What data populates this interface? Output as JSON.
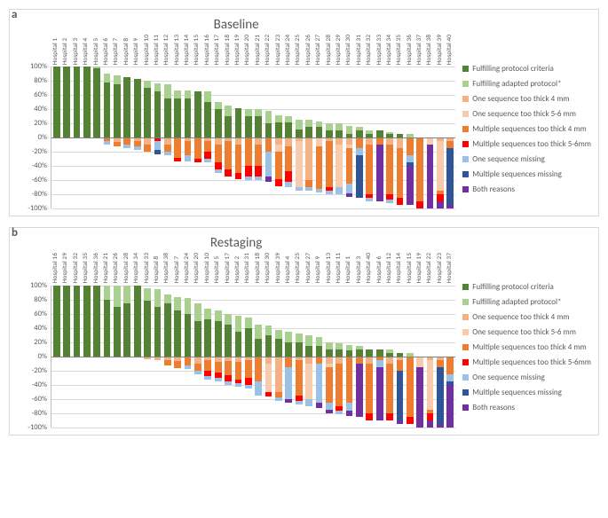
{
  "colors": {
    "fulfilling": "#548235",
    "adapted": "#a9d08e",
    "one4": "#f4b183",
    "one56": "#f8cbad",
    "multi4": "#ed7d31",
    "multi56": "#ff0000",
    "oneMiss": "#9bc2e6",
    "multiMiss": "#2f5597",
    "both": "#7030a0",
    "grid": "#d9d9d9",
    "zero": "#808080",
    "text": "#595959",
    "border": "#d9d9d9"
  },
  "yaxis": {
    "min": -100,
    "max": 100,
    "step": 20,
    "ticks": [
      "100%",
      "80%",
      "60%",
      "40%",
      "20%",
      "0%",
      "-20%",
      "-40%",
      "-60%",
      "-80%",
      "-100%"
    ]
  },
  "legend": [
    {
      "key": "fulfilling",
      "label": "Fulfilling protocol criteria"
    },
    {
      "key": "adapted",
      "label": "Fulfilling adapted protocol*"
    },
    {
      "key": "one4",
      "label": "One sequence too thick 4 mm"
    },
    {
      "key": "one56",
      "label": "One sequence too thick 5-6 mm"
    },
    {
      "key": "multi4",
      "label": "Multiple sequences too thick 4 mm"
    },
    {
      "key": "multi56",
      "label": "Multiple sequences too thick 5-6mm"
    },
    {
      "key": "oneMiss",
      "label": "One sequence missing"
    },
    {
      "key": "multiMiss",
      "label": "Multiple sequences missing"
    },
    {
      "key": "both",
      "label": "Both reasons"
    }
  ],
  "panels": [
    {
      "id": "a",
      "letter": "a",
      "title": "Baseline",
      "categories": [
        "Hospital 1",
        "Hospital 2",
        "Hospital 3",
        "Hospital 4",
        "Hospital 5",
        "Hospital 6",
        "Hospital 7",
        "Hospital 8",
        "Hospital 9",
        "Hospital 10",
        "Hospital 11",
        "Hospital 12",
        "Hospital 13",
        "Hospital 14",
        "Hospital 15",
        "Hospital 16",
        "Hospital 17",
        "Hospital 18",
        "Hospital 19",
        "Hospital 20",
        "Hospital 21",
        "Hospital 22",
        "Hospital 23",
        "Hospital 24",
        "Hospital 25",
        "Hospital 26",
        "Hospital 27",
        "Hospital 28",
        "Hospital 29",
        "Hospital 30",
        "Hospital 31",
        "Hospital 32",
        "Hospital 33",
        "Hospital 34",
        "Hospital 35",
        "Hospital 36",
        "Hospital 37",
        "Hospital 38",
        "Hospital 39",
        "Hospital 40"
      ],
      "bars": [
        {
          "pos": {
            "fulfilling": 100
          },
          "neg": {}
        },
        {
          "pos": {
            "fulfilling": 100
          },
          "neg": {}
        },
        {
          "pos": {
            "fulfilling": 100
          },
          "neg": {}
        },
        {
          "pos": {
            "fulfilling": 100
          },
          "neg": {}
        },
        {
          "pos": {
            "fulfilling": 98,
            "adapted": 2
          },
          "neg": {}
        },
        {
          "pos": {
            "fulfilling": 78,
            "adapted": 12
          },
          "neg": {
            "multi4": 5,
            "oneMiss": 5
          }
        },
        {
          "pos": {
            "fulfilling": 75,
            "adapted": 13
          },
          "neg": {
            "one4": 6,
            "multi4": 6
          }
        },
        {
          "pos": {
            "fulfilling": 85
          },
          "neg": {
            "multi4": 10,
            "oneMiss": 5
          }
        },
        {
          "pos": {
            "fulfilling": 83
          },
          "neg": {
            "one4": 5,
            "multi4": 7,
            "oneMiss": 5
          }
        },
        {
          "pos": {
            "fulfilling": 70,
            "adapted": 10
          },
          "neg": {
            "one4": 10,
            "multi4": 10
          }
        },
        {
          "pos": {
            "fulfilling": 65,
            "adapted": 12
          },
          "neg": {
            "multi56": 5,
            "oneMiss": 12,
            "multiMiss": 6
          }
        },
        {
          "pos": {
            "fulfilling": 55,
            "adapted": 20
          },
          "neg": {
            "one4": 10,
            "multi4": 10,
            "oneMiss": 5
          }
        },
        {
          "pos": {
            "fulfilling": 55,
            "adapted": 12
          },
          "neg": {
            "multi4": 28,
            "multi56": 5
          }
        },
        {
          "pos": {
            "fulfilling": 55,
            "adapted": 12
          },
          "neg": {
            "one4": 5,
            "multi4": 20,
            "oneMiss": 8
          }
        },
        {
          "pos": {
            "fulfilling": 65
          },
          "neg": {
            "multi4": 30,
            "multi56": 5
          }
        },
        {
          "pos": {
            "fulfilling": 50,
            "adapted": 15
          },
          "neg": {
            "one4": 5,
            "multi4": 15,
            "multi56": 10,
            "oneMiss": 5
          }
        },
        {
          "pos": {
            "fulfilling": 40,
            "adapted": 10
          },
          "neg": {
            "one4": 10,
            "multi4": 25,
            "multi56": 10,
            "oneMiss": 5
          }
        },
        {
          "pos": {
            "fulfilling": 30,
            "adapted": 15
          },
          "neg": {
            "one4": 5,
            "multi4": 40,
            "multi56": 10
          }
        },
        {
          "pos": {
            "fulfilling": 42
          },
          "neg": {
            "one4": 10,
            "multi4": 40,
            "multi56": 8
          }
        },
        {
          "pos": {
            "fulfilling": 30,
            "adapted": 10
          },
          "neg": {
            "multi4": 40,
            "multi56": 15,
            "oneMiss": 5
          }
        },
        {
          "pos": {
            "fulfilling": 30,
            "adapted": 10
          },
          "neg": {
            "one4": 10,
            "multi4": 30,
            "multi56": 15,
            "oneMiss": 5
          }
        },
        {
          "pos": {
            "fulfilling": 20,
            "adapted": 18
          },
          "neg": {
            "multi4": 20,
            "oneMiss": 35,
            "both": 7
          }
        },
        {
          "pos": {
            "fulfilling": 22,
            "adapted": 10
          },
          "neg": {
            "one4": 10,
            "one56": 10,
            "multi4": 38,
            "multi56": 10
          }
        },
        {
          "pos": {
            "fulfilling": 22,
            "adapted": 8
          },
          "neg": {
            "one4": 12,
            "multi4": 35,
            "multi56": 15,
            "oneMiss": 8
          }
        },
        {
          "pos": {
            "fulfilling": 12,
            "adapted": 13
          },
          "neg": {
            "one4": 5,
            "one56": 65,
            "oneMiss": 5
          }
        },
        {
          "pos": {
            "fulfilling": 15,
            "adapted": 10
          },
          "neg": {
            "one4": 60,
            "multi4": 10,
            "oneMiss": 5
          }
        },
        {
          "pos": {
            "fulfilling": 15,
            "adapted": 8
          },
          "neg": {
            "one56": 12,
            "multi4": 60,
            "oneMiss": 5
          }
        },
        {
          "pos": {
            "fulfilling": 10,
            "adapted": 10
          },
          "neg": {
            "one4": 5,
            "multi4": 65,
            "multi56": 5,
            "oneMiss": 5
          }
        },
        {
          "pos": {
            "fulfilling": 10,
            "adapted": 10
          },
          "neg": {
            "one4": 10,
            "one56": 60,
            "oneMiss": 10
          }
        },
        {
          "pos": {
            "fulfilling": 5,
            "adapted": 12
          },
          "neg": {
            "one4": 10,
            "one56": 5,
            "multi4": 50,
            "oneMiss": 13,
            "both": 5
          }
        },
        {
          "pos": {
            "fulfilling": 10,
            "adapted": 5
          },
          "neg": {
            "multi4": 15,
            "oneMiss": 10,
            "multiMiss": 60
          }
        },
        {
          "pos": {
            "fulfilling": 5,
            "adapted": 5
          },
          "neg": {
            "one4": 10,
            "multi4": 70,
            "multi56": 5,
            "oneMiss": 5
          }
        },
        {
          "pos": {
            "fulfilling": 10
          },
          "neg": {
            "multi4": 10,
            "both": 80
          }
        },
        {
          "pos": {
            "fulfilling": 5,
            "adapted": 3
          },
          "neg": {
            "one4": 10,
            "multi4": 70,
            "multi56": 7,
            "oneMiss": 5
          }
        },
        {
          "pos": {
            "fulfilling": 5
          },
          "neg": {
            "one4": 15,
            "multi4": 70,
            "multi56": 10
          }
        },
        {
          "pos": {
            "adapted": 5
          },
          "neg": {
            "multi4": 25,
            "oneMiss": 10,
            "multiMiss": 5,
            "both": 55
          }
        },
        {
          "pos": {},
          "neg": {
            "multi4": 90,
            "multi56": 10
          }
        },
        {
          "pos": {},
          "neg": {
            "one56": 10,
            "both": 90
          }
        },
        {
          "pos": {},
          "neg": {
            "one4": 5,
            "one56": 70,
            "multi4": 5,
            "multi56": 10,
            "both": 10
          }
        },
        {
          "pos": {},
          "neg": {
            "one4": 5,
            "multi4": 10,
            "multiMiss": 80,
            "both": 5
          }
        }
      ]
    },
    {
      "id": "b",
      "letter": "b",
      "title": "Restaging",
      "categories": [
        "Hospital 16",
        "Hospital 29",
        "Hospital 32",
        "Hospital 35",
        "Hospital 36",
        "Hospital 21",
        "Hospital 26",
        "Hospital 28",
        "Hospital 34",
        "Hospital 33",
        "Hospital 8",
        "Hospital 38",
        "Hospital 7",
        "Hospital 24",
        "Hospital 20",
        "Hospital 10",
        "Hospital 5",
        "Hospital 17",
        "Hospital 2",
        "Hospital 31",
        "Hospital 18",
        "Hospital 30",
        "Hospital 39",
        "Hospital 4",
        "Hospital 25",
        "Hospital 27",
        "Hospital 9",
        "Hospital 13",
        "Hospital 11",
        "Hospital 1",
        "Hospital 3",
        "Hospital 40",
        "Hospital 6",
        "Hospital 12",
        "Hospital 14",
        "Hospital 15",
        "Hospital 19",
        "Hospital 22",
        "Hospital 23",
        "Hospital 37"
      ],
      "bars": [
        {
          "pos": {
            "fulfilling": 100
          },
          "neg": {}
        },
        {
          "pos": {
            "fulfilling": 100
          },
          "neg": {}
        },
        {
          "pos": {
            "fulfilling": 100
          },
          "neg": {}
        },
        {
          "pos": {
            "fulfilling": 100
          },
          "neg": {}
        },
        {
          "pos": {
            "fulfilling": 100
          },
          "neg": {}
        },
        {
          "pos": {
            "fulfilling": 80,
            "adapted": 20
          },
          "neg": {}
        },
        {
          "pos": {
            "fulfilling": 70,
            "adapted": 30
          },
          "neg": {}
        },
        {
          "pos": {
            "fulfilling": 75,
            "adapted": 25
          },
          "neg": {}
        },
        {
          "pos": {
            "fulfilling": 100
          },
          "neg": {}
        },
        {
          "pos": {
            "fulfilling": 78,
            "adapted": 18
          },
          "neg": {
            "one4": 4
          }
        },
        {
          "pos": {
            "fulfilling": 70,
            "adapted": 25
          },
          "neg": {
            "one4": 5
          }
        },
        {
          "pos": {
            "fulfilling": 75,
            "adapted": 12
          },
          "neg": {
            "one4": 5,
            "multi4": 8
          }
        },
        {
          "pos": {
            "fulfilling": 65,
            "adapted": 18
          },
          "neg": {
            "one4": 7,
            "multi4": 10
          }
        },
        {
          "pos": {
            "fulfilling": 60,
            "adapted": 22
          },
          "neg": {
            "multi4": 13,
            "oneMiss": 5
          }
        },
        {
          "pos": {
            "fulfilling": 50,
            "adapted": 25
          },
          "neg": {
            "one4": 10,
            "multi4": 10,
            "oneMiss": 5
          }
        },
        {
          "pos": {
            "fulfilling": 52,
            "adapted": 15
          },
          "neg": {
            "one4": 5,
            "multi4": 15,
            "multi56": 8,
            "oneMiss": 5
          }
        },
        {
          "pos": {
            "fulfilling": 50,
            "adapted": 15
          },
          "neg": {
            "one4": 8,
            "multi4": 15,
            "multi56": 7,
            "oneMiss": 5
          }
        },
        {
          "pos": {
            "fulfilling": 45,
            "adapted": 15
          },
          "neg": {
            "one4": 7,
            "multi4": 20,
            "multi56": 8,
            "oneMiss": 5
          }
        },
        {
          "pos": {
            "fulfilling": 35,
            "adapted": 22
          },
          "neg": {
            "one4": 8,
            "multi4": 25,
            "multi56": 5,
            "oneMiss": 5
          }
        },
        {
          "pos": {
            "fulfilling": 40,
            "adapted": 15
          },
          "neg": {
            "one4": 5,
            "multi4": 25,
            "multi56": 10,
            "oneMiss": 5
          }
        },
        {
          "pos": {
            "fulfilling": 25,
            "adapted": 20
          },
          "neg": {
            "multi4": 35,
            "oneMiss": 20
          }
        },
        {
          "pos": {
            "fulfilling": 30,
            "adapted": 13
          },
          "neg": {
            "one4": 10,
            "one56": 40,
            "multi56": 7
          }
        },
        {
          "pos": {
            "fulfilling": 25,
            "adapted": 12
          },
          "neg": {
            "one4": 50,
            "multi4": 8,
            "oneMiss": 5
          }
        },
        {
          "pos": {
            "fulfilling": 20,
            "adapted": 15
          },
          "neg": {
            "multi4": 15,
            "oneMiss": 45,
            "both": 5
          }
        },
        {
          "pos": {
            "fulfilling": 20,
            "adapted": 12
          },
          "neg": {
            "one4": 5,
            "multi4": 50,
            "multi56": 8,
            "oneMiss": 5
          }
        },
        {
          "pos": {
            "fulfilling": 15,
            "adapted": 15
          },
          "neg": {
            "one4": 10,
            "one56": 50,
            "oneMiss": 10
          }
        },
        {
          "pos": {
            "fulfilling": 15,
            "adapted": 12
          },
          "neg": {
            "multi4": 10,
            "oneMiss": 55,
            "both": 8
          }
        },
        {
          "pos": {
            "fulfilling": 10,
            "adapted": 10
          },
          "neg": {
            "one4": 10,
            "one56": 5,
            "multi4": 50,
            "oneMiss": 10,
            "both": 5
          }
        },
        {
          "pos": {
            "fulfilling": 10,
            "adapted": 8
          },
          "neg": {
            "one4": 10,
            "multi4": 60,
            "multi56": 7,
            "oneMiss": 5
          }
        },
        {
          "pos": {
            "fulfilling": 8,
            "adapted": 8
          },
          "neg": {
            "multi4": 65,
            "oneMiss": 12,
            "both": 7
          }
        },
        {
          "pos": {
            "fulfilling": 10,
            "adapted": 5
          },
          "neg": {
            "multi4": 10,
            "both": 75
          }
        },
        {
          "pos": {
            "fulfilling": 10
          },
          "neg": {
            "one4": 10,
            "multi4": 70,
            "multi56": 10
          }
        },
        {
          "pos": {
            "fulfilling": 10
          },
          "neg": {
            "multi4": 5,
            "oneMiss": 10,
            "both": 75
          }
        },
        {
          "pos": {
            "fulfilling": 5,
            "adapted": 5
          },
          "neg": {
            "one4": 10,
            "multi4": 70,
            "multi56": 10
          }
        },
        {
          "pos": {
            "fulfilling": 5
          },
          "neg": {
            "one4": 5,
            "multi4": 15,
            "multiMiss": 70,
            "both": 5
          }
        },
        {
          "pos": {
            "adapted": 5
          },
          "neg": {
            "multi4": 85,
            "multi56": 10
          }
        },
        {
          "pos": {},
          "neg": {
            "one56": 15,
            "both": 85
          }
        },
        {
          "pos": {},
          "neg": {
            "one4": 5,
            "one56": 70,
            "multi4": 5,
            "multi56": 10,
            "both": 10
          }
        },
        {
          "pos": {},
          "neg": {
            "one4": 5,
            "multi4": 10,
            "multiMiss": 80,
            "both": 5
          }
        },
        {
          "pos": {},
          "neg": {
            "multi4": 25,
            "oneMiss": 10,
            "multiMiss": 5,
            "both": 60
          }
        }
      ]
    }
  ]
}
